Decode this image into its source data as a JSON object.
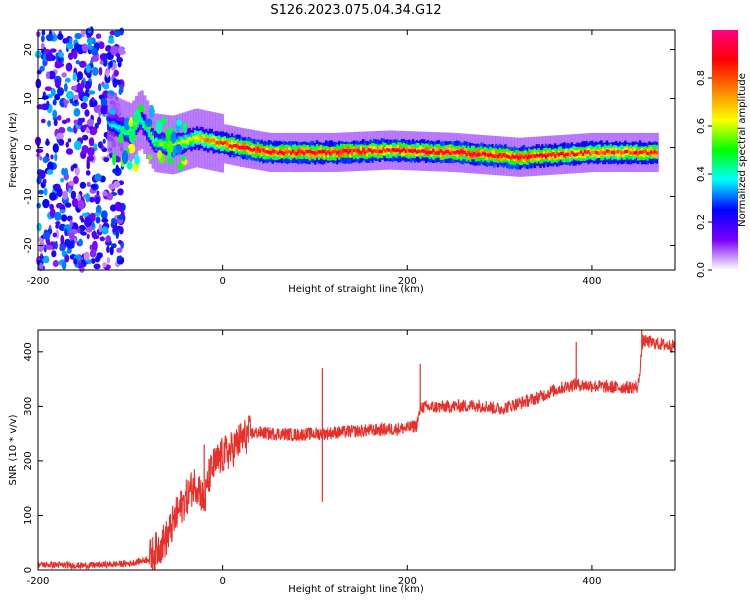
{
  "title": "S126.2023.075.04.34.G12",
  "chart_data": [
    {
      "type": "heatmap",
      "xlabel": "Height of straight line (km)",
      "ylabel": "Frequency (Hz)",
      "xlim": [
        -200,
        490
      ],
      "ylim": [
        -25,
        24
      ],
      "xticks": [
        -200,
        0,
        200,
        400
      ],
      "yticks": [
        -20,
        -10,
        0,
        10,
        20
      ],
      "colorbar": {
        "label": "Normalized spectral amplitude",
        "range": [
          0,
          1
        ],
        "ticks": [
          0.0,
          0.2,
          0.4,
          0.6,
          0.8
        ],
        "colormap": [
          "#ffffff",
          "#7a00ff",
          "#0000ff",
          "#00ffff",
          "#00ff00",
          "#ffff00",
          "#ff8000",
          "#ff0000",
          "#ff0080"
        ]
      },
      "noise_region_x": [
        -200,
        -108
      ],
      "ridge": [
        {
          "x": -125,
          "freq": 5,
          "amp": 0.35
        },
        {
          "x": -100,
          "freq": 3,
          "amp": 0.55
        },
        {
          "x": -90,
          "freq": 6,
          "amp": 0.45
        },
        {
          "x": -75,
          "freq": 1,
          "amp": 0.55
        },
        {
          "x": -55,
          "freq": 0.5,
          "amp": 0.6
        },
        {
          "x": -30,
          "freq": 2,
          "amp": 0.7
        },
        {
          "x": 0,
          "freq": 0.8,
          "amp": 0.85
        },
        {
          "x": 20,
          "freq": 0,
          "amp": 0.95
        },
        {
          "x": 50,
          "freq": -1,
          "amp": 0.9
        },
        {
          "x": 120,
          "freq": -1,
          "amp": 0.95
        },
        {
          "x": 180,
          "freq": -0.5,
          "amp": 0.9
        },
        {
          "x": 250,
          "freq": -1,
          "amp": 0.95
        },
        {
          "x": 320,
          "freq": -2,
          "amp": 0.95
        },
        {
          "x": 400,
          "freq": -1,
          "amp": 0.85
        },
        {
          "x": 470,
          "freq": -1,
          "amp": 0.9
        }
      ]
    },
    {
      "type": "line",
      "xlabel": "Height of straight line (km)",
      "ylabel": "SNR (10 * v/v)",
      "xlim": [
        -200,
        490
      ],
      "ylim": [
        0,
        440
      ],
      "xticks": [
        -200,
        0,
        200,
        400
      ],
      "yticks": [
        0,
        100,
        200,
        300,
        400
      ],
      "color": "#e8302a",
      "series": [
        {
          "x": [
            -200,
            -150,
            -100,
            -80,
            -70,
            -60,
            -50,
            -40,
            -30,
            -25,
            -20,
            -15,
            -10,
            -5,
            0,
            5,
            10,
            15,
            20,
            30,
            40,
            50,
            60,
            80,
            100,
            110,
            120,
            150,
            180,
            200,
            210,
            215,
            220,
            250,
            280,
            300,
            320,
            340,
            360,
            380,
            400,
            420,
            450,
            455,
            470,
            490
          ],
          "y": [
            10,
            8,
            12,
            20,
            40,
            60,
            100,
            130,
            160,
            150,
            120,
            170,
            190,
            200,
            210,
            215,
            220,
            230,
            240,
            250,
            252,
            250,
            250,
            248,
            250,
            250,
            252,
            255,
            258,
            260,
            265,
            300,
            298,
            300,
            302,
            295,
            305,
            315,
            330,
            340,
            338,
            335,
            335,
            420,
            415,
            410
          ]
        }
      ],
      "spikes": [
        {
          "x": -20,
          "y": 230
        },
        {
          "x": 108,
          "y": 370
        },
        {
          "x": 108,
          "y": 125
        },
        {
          "x": 214,
          "y": 378
        },
        {
          "x": 383,
          "y": 418
        },
        {
          "x": 454,
          "y": 440
        }
      ]
    }
  ]
}
